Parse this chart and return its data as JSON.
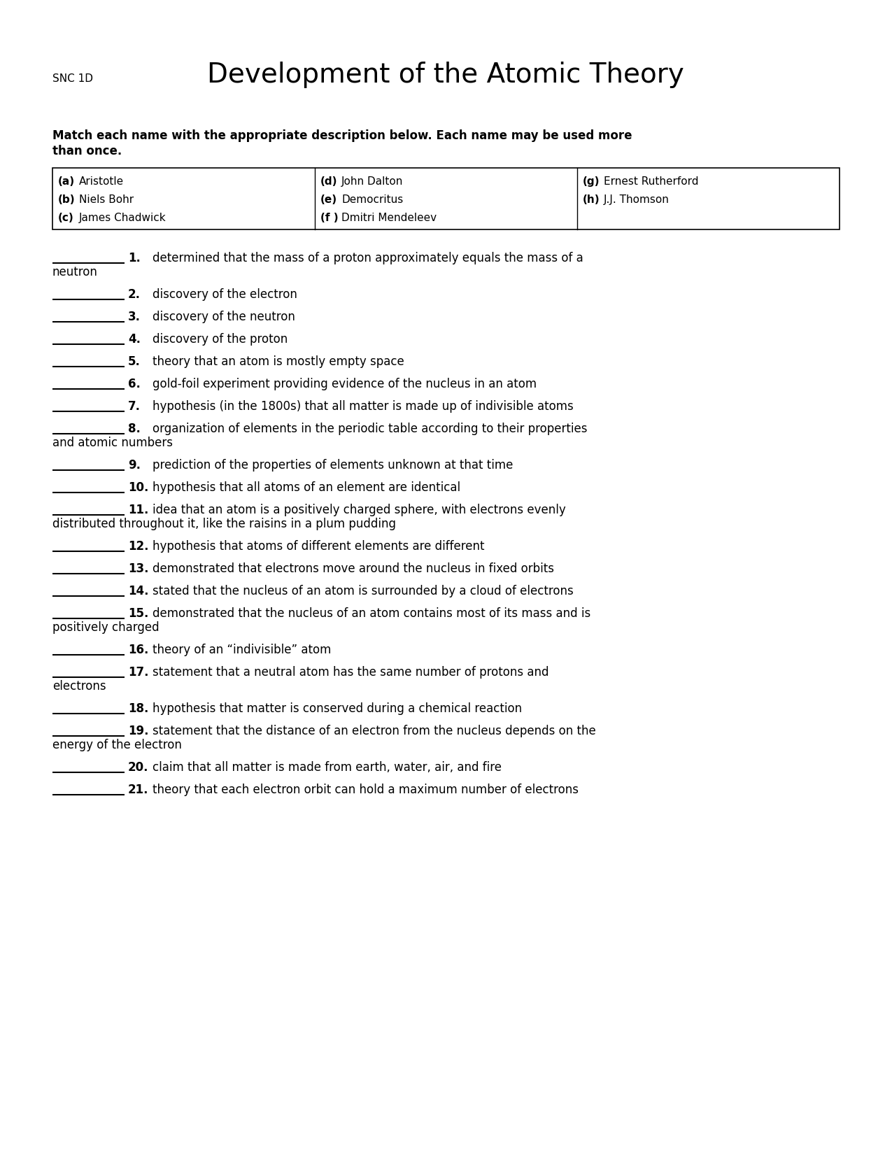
{
  "title": "Development of the Atomic Theory",
  "subtitle": "SNC 1D",
  "bg_color": "#ffffff",
  "instruction_line1": "Match each name with the appropriate description below. Each name may be used more",
  "instruction_line2": "than once.",
  "table": {
    "col1": [
      [
        "(a)",
        "Aristotle"
      ],
      [
        "(b)",
        "Niels Bohr"
      ],
      [
        "(c)",
        "James Chadwick"
      ]
    ],
    "col2": [
      [
        "(d)",
        "John Dalton"
      ],
      [
        "(e)",
        "Democritus"
      ],
      [
        "(f )",
        "Dmitri Mendeleev"
      ]
    ],
    "col3": [
      [
        "(g)",
        "Ernest Rutherford"
      ],
      [
        "(h)",
        "J.J. Thomson"
      ],
      [
        "",
        ""
      ]
    ]
  },
  "questions": [
    {
      "num": "1.",
      "text": "determined that the mass of a proton approximately equals the mass of a",
      "cont": "neutron"
    },
    {
      "num": "2.",
      "text": "discovery of the electron",
      "cont": ""
    },
    {
      "num": "3.",
      "text": "discovery of the neutron",
      "cont": ""
    },
    {
      "num": "4.",
      "text": "discovery of the proton",
      "cont": ""
    },
    {
      "num": "5.",
      "text": "theory that an atom is mostly empty space",
      "cont": ""
    },
    {
      "num": "6.",
      "text": "gold-foil experiment providing evidence of the nucleus in an atom",
      "cont": ""
    },
    {
      "num": "7.",
      "text": "hypothesis (in the 1800s) that all matter is made up of indivisible atoms",
      "cont": ""
    },
    {
      "num": "8.",
      "text": "organization of elements in the periodic table according to their properties",
      "cont": "and atomic numbers"
    },
    {
      "num": "9.",
      "text": "prediction of the properties of elements unknown at that time",
      "cont": ""
    },
    {
      "num": "10.",
      "text": "hypothesis that all atoms of an element are identical",
      "cont": ""
    },
    {
      "num": "11.",
      "text": "idea that an atom is a positively charged sphere, with electrons evenly",
      "cont": "distributed throughout it, like the raisins in a plum pudding"
    },
    {
      "num": "12.",
      "text": "hypothesis that atoms of different elements are different",
      "cont": ""
    },
    {
      "num": "13.",
      "text": "demonstrated that electrons move around the nucleus in fixed orbits",
      "cont": ""
    },
    {
      "num": "14.",
      "text": "stated that the nucleus of an atom is surrounded by a cloud of electrons",
      "cont": ""
    },
    {
      "num": "15.",
      "text": "demonstrated that the nucleus of an atom contains most of its mass and is",
      "cont": "positively charged"
    },
    {
      "num": "16.",
      "text": "theory of an “indivisible” atom",
      "cont": ""
    },
    {
      "num": "17.",
      "text": "statement that a neutral atom has the same number of protons and",
      "cont": "electrons"
    },
    {
      "num": "18.",
      "text": "hypothesis that matter is conserved during a chemical reaction",
      "cont": ""
    },
    {
      "num": "19.",
      "text": "statement that the distance of an electron from the nucleus depends on the",
      "cont": "energy of the electron"
    },
    {
      "num": "20.",
      "text": "claim that all matter is made from earth, water, air, and fire",
      "cont": ""
    },
    {
      "num": "21.",
      "text": "theory that each electron orbit can hold a maximum number of electrons",
      "cont": ""
    }
  ],
  "title_fontsize": 28,
  "subtitle_fontsize": 11,
  "instruction_fontsize": 12,
  "table_fontsize": 11,
  "question_fontsize": 12
}
